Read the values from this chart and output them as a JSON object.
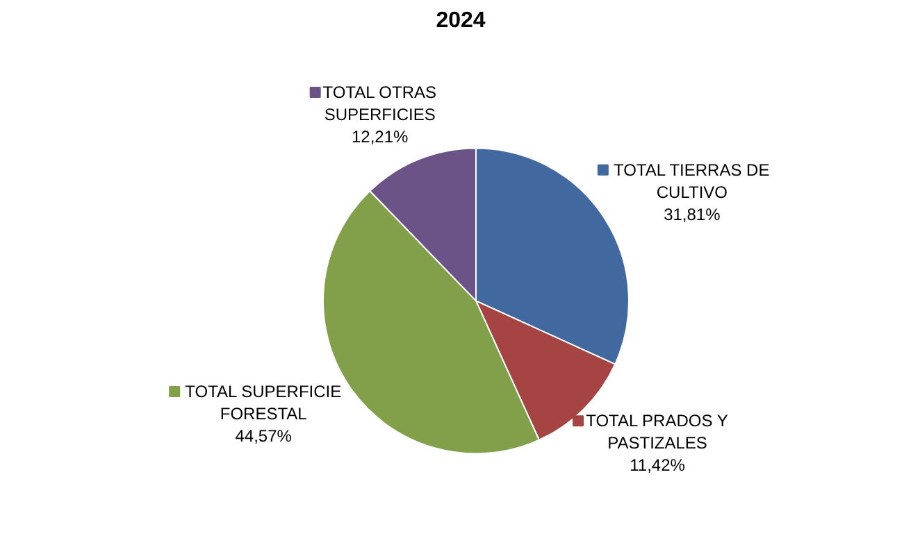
{
  "chart_data": {
    "type": "pie",
    "title": "2024",
    "categories": [
      "TOTAL TIERRAS DE CULTIVO",
      "TOTAL PRADOS Y PASTIZALES",
      "TOTAL SUPERFICIE FORESTAL",
      "TOTAL OTRAS SUPERFICIES"
    ],
    "values": [
      31.81,
      11.42,
      44.57,
      12.21
    ],
    "colors": [
      "#41699f",
      "#a54442",
      "#82a04a",
      "#6b5287"
    ],
    "value_labels": [
      "31,81%",
      "11,42%",
      "44,57%",
      "12,21%"
    ],
    "legend": true
  }
}
